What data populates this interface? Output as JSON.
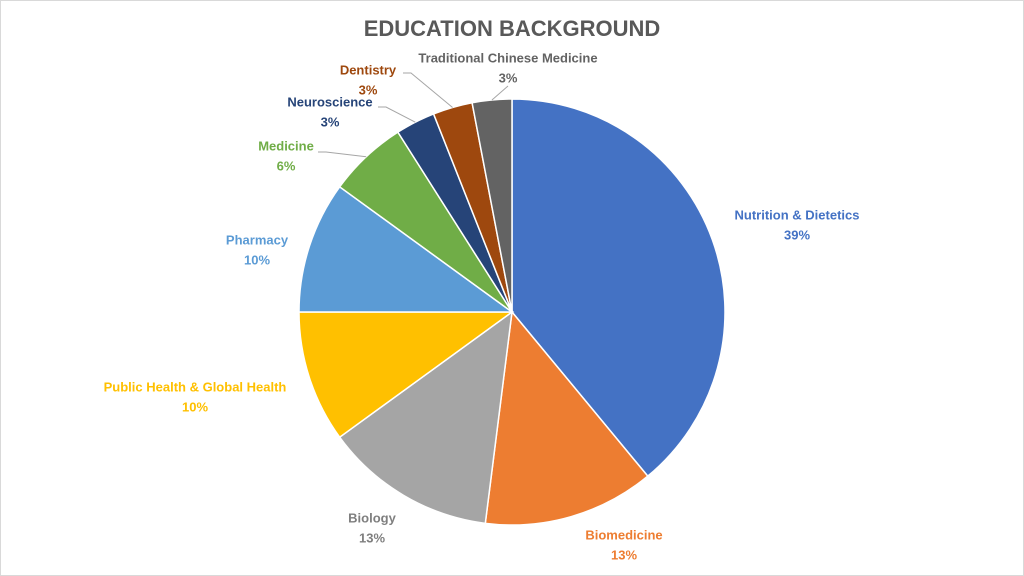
{
  "chart_data": {
    "type": "pie",
    "title": "EDUCATION BACKGROUND",
    "categories": [
      "Nutrition & Dietetics",
      "Biomedicine",
      "Biology",
      "Public Health & Global Health",
      "Pharmacy",
      "Medicine",
      "Neuroscience",
      "Dentistry",
      "Traditional Chinese Medicine"
    ],
    "values": [
      39,
      13,
      13,
      10,
      10,
      6,
      3,
      3,
      3
    ],
    "value_labels": [
      "39%",
      "13%",
      "13%",
      "10%",
      "10%",
      "6%",
      "3%",
      "3%",
      "3%"
    ],
    "colors": [
      "#4472c4",
      "#ed7d31",
      "#a5a5a5",
      "#ffc000",
      "#5b9bd5",
      "#70ad47",
      "#264478",
      "#9e480e",
      "#636363"
    ]
  }
}
